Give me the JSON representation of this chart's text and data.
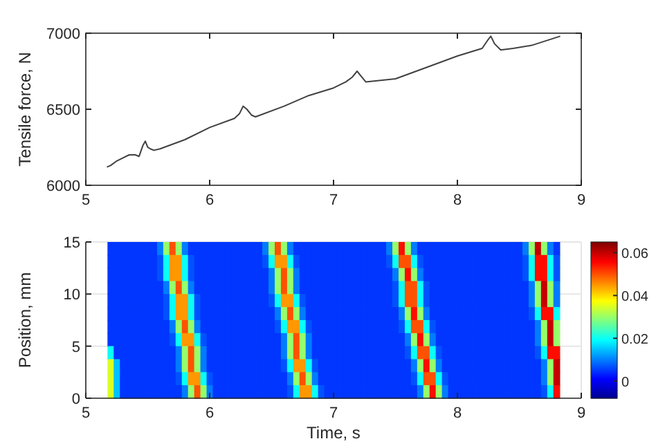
{
  "chart_data": [
    {
      "type": "line",
      "ylabel": "Tensile force, N",
      "xlim": [
        5,
        9
      ],
      "xticks": [
        5,
        6,
        7,
        8,
        9
      ],
      "ylim": [
        6000,
        7000
      ],
      "yticks": [
        6000,
        6500,
        7000
      ],
      "grid": false,
      "series": [
        {
          "color": "#404040",
          "x": [
            5.17,
            5.2,
            5.25,
            5.3,
            5.35,
            5.4,
            5.43,
            5.46,
            5.48,
            5.5,
            5.52,
            5.55,
            5.6,
            5.8,
            6.0,
            6.2,
            6.24,
            6.27,
            6.3,
            6.34,
            6.37,
            6.6,
            6.8,
            7.0,
            7.1,
            7.15,
            7.19,
            7.22,
            7.26,
            7.5,
            7.8,
            8.0,
            8.2,
            8.25,
            8.27,
            8.3,
            8.35,
            8.45,
            8.6,
            8.83
          ],
          "values": [
            6120,
            6130,
            6160,
            6180,
            6200,
            6200,
            6190,
            6260,
            6290,
            6250,
            6240,
            6230,
            6240,
            6300,
            6380,
            6440,
            6470,
            6520,
            6500,
            6460,
            6450,
            6520,
            6590,
            6640,
            6680,
            6710,
            6750,
            6720,
            6680,
            6700,
            6790,
            6850,
            6900,
            6960,
            6980,
            6930,
            6890,
            6900,
            6920,
            6980
          ]
        }
      ]
    },
    {
      "type": "heatmap",
      "xlabel": "Time, s",
      "ylabel": "Position, mm",
      "xlim": [
        5,
        9
      ],
      "xticks": [
        5,
        6,
        7,
        8,
        9
      ],
      "ylim": [
        0,
        15
      ],
      "yticks": [
        0,
        5,
        10,
        15
      ],
      "grid": true,
      "clim": [
        -0.008,
        0.065
      ],
      "cticks": [
        0,
        0.02,
        0.04,
        0.06
      ],
      "x": [
        5.2,
        5.25,
        5.3,
        5.35,
        5.4,
        5.45,
        5.5,
        5.55,
        5.6,
        5.65,
        5.7,
        5.75,
        5.8,
        5.85,
        5.9,
        5.95,
        6.0,
        6.05,
        6.1,
        6.15,
        6.2,
        6.25,
        6.3,
        6.35,
        6.4,
        6.45,
        6.5,
        6.55,
        6.6,
        6.65,
        6.7,
        6.75,
        6.8,
        6.85,
        6.9,
        6.95,
        7.0,
        7.05,
        7.1,
        7.15,
        7.2,
        7.25,
        7.3,
        7.35,
        7.4,
        7.45,
        7.5,
        7.55,
        7.6,
        7.65,
        7.7,
        7.75,
        7.8,
        7.85,
        7.9,
        7.95,
        8.0,
        8.05,
        8.1,
        8.15,
        8.2,
        8.25,
        8.3,
        8.35,
        8.4,
        8.45,
        8.5,
        8.55,
        8.6,
        8.65,
        8.7,
        8.75,
        8.8
      ],
      "cells": [
        [
          0.005,
          0.005,
          0.005,
          0.005,
          0.005,
          0.005,
          0.005,
          0.005,
          0.01,
          0.03,
          0.05,
          0.03,
          0.01,
          0.005,
          0.005,
          0.005,
          0.005,
          0.005,
          0.005,
          0.005,
          0.005,
          0.005,
          0.005,
          0.005,
          0.005,
          0.01,
          0.03,
          0.05,
          0.03,
          0.01,
          0.005,
          0.005,
          0.005,
          0.005,
          0.005,
          0.005,
          0.005,
          0.005,
          0.005,
          0.005,
          0.005,
          0.005,
          0.005,
          0.005,
          0.005,
          0.01,
          0.03,
          0.055,
          0.03,
          0.01,
          0.005,
          0.005,
          0.005,
          0.005,
          0.005,
          0.005,
          0.005,
          0.005,
          0.005,
          0.005,
          0.005,
          0.005,
          0.005,
          0.005,
          0.005,
          0.005,
          0.005,
          0.01,
          0.03,
          0.06,
          0.03,
          0.01,
          0.005
        ],
        [
          0.005,
          0.005,
          0.005,
          0.005,
          0.005,
          0.005,
          0.005,
          0.005,
          0.007,
          0.02,
          0.045,
          0.045,
          0.02,
          0.007,
          0.005,
          0.005,
          0.005,
          0.005,
          0.005,
          0.005,
          0.005,
          0.005,
          0.005,
          0.005,
          0.005,
          0.007,
          0.02,
          0.045,
          0.045,
          0.02,
          0.007,
          0.005,
          0.005,
          0.005,
          0.005,
          0.005,
          0.005,
          0.005,
          0.005,
          0.005,
          0.005,
          0.005,
          0.005,
          0.005,
          0.005,
          0.007,
          0.02,
          0.05,
          0.05,
          0.02,
          0.007,
          0.005,
          0.005,
          0.005,
          0.005,
          0.005,
          0.005,
          0.005,
          0.005,
          0.005,
          0.005,
          0.005,
          0.005,
          0.005,
          0.005,
          0.005,
          0.005,
          0.007,
          0.02,
          0.055,
          0.055,
          0.02,
          0.007
        ],
        [
          0.005,
          0.005,
          0.005,
          0.005,
          0.005,
          0.005,
          0.005,
          0.005,
          0.007,
          0.02,
          0.045,
          0.045,
          0.02,
          0.007,
          0.005,
          0.005,
          0.005,
          0.005,
          0.005,
          0.005,
          0.005,
          0.005,
          0.005,
          0.005,
          0.005,
          0.005,
          0.01,
          0.03,
          0.05,
          0.03,
          0.01,
          0.005,
          0.005,
          0.005,
          0.005,
          0.005,
          0.005,
          0.005,
          0.005,
          0.005,
          0.005,
          0.005,
          0.005,
          0.005,
          0.005,
          0.005,
          0.01,
          0.03,
          0.055,
          0.03,
          0.01,
          0.005,
          0.005,
          0.005,
          0.005,
          0.005,
          0.005,
          0.005,
          0.005,
          0.005,
          0.005,
          0.005,
          0.005,
          0.005,
          0.005,
          0.005,
          0.005,
          0.007,
          0.02,
          0.055,
          0.055,
          0.02,
          0.007
        ],
        [
          0.005,
          0.005,
          0.005,
          0.005,
          0.005,
          0.005,
          0.005,
          0.005,
          0.005,
          0.01,
          0.03,
          0.05,
          0.03,
          0.01,
          0.005,
          0.005,
          0.005,
          0.005,
          0.005,
          0.005,
          0.005,
          0.005,
          0.005,
          0.005,
          0.005,
          0.005,
          0.01,
          0.03,
          0.05,
          0.03,
          0.01,
          0.005,
          0.005,
          0.005,
          0.005,
          0.005,
          0.005,
          0.005,
          0.005,
          0.005,
          0.005,
          0.005,
          0.005,
          0.005,
          0.005,
          0.005,
          0.007,
          0.02,
          0.05,
          0.05,
          0.02,
          0.007,
          0.005,
          0.005,
          0.005,
          0.005,
          0.005,
          0.005,
          0.005,
          0.005,
          0.005,
          0.005,
          0.005,
          0.005,
          0.005,
          0.005,
          0.005,
          0.005,
          0.01,
          0.03,
          0.06,
          0.03,
          0.01
        ],
        [
          0.005,
          0.005,
          0.005,
          0.005,
          0.005,
          0.005,
          0.005,
          0.005,
          0.005,
          0.007,
          0.02,
          0.045,
          0.045,
          0.02,
          0.007,
          0.005,
          0.005,
          0.005,
          0.005,
          0.005,
          0.005,
          0.005,
          0.005,
          0.005,
          0.005,
          0.005,
          0.007,
          0.02,
          0.045,
          0.045,
          0.02,
          0.007,
          0.005,
          0.005,
          0.005,
          0.005,
          0.005,
          0.005,
          0.005,
          0.005,
          0.005,
          0.005,
          0.005,
          0.005,
          0.005,
          0.005,
          0.007,
          0.02,
          0.05,
          0.05,
          0.02,
          0.007,
          0.005,
          0.005,
          0.005,
          0.005,
          0.005,
          0.005,
          0.005,
          0.005,
          0.005,
          0.005,
          0.005,
          0.005,
          0.005,
          0.005,
          0.005,
          0.005,
          0.01,
          0.03,
          0.06,
          0.03,
          0.01
        ],
        [
          0.005,
          0.005,
          0.005,
          0.005,
          0.005,
          0.005,
          0.005,
          0.005,
          0.005,
          0.007,
          0.02,
          0.045,
          0.045,
          0.02,
          0.007,
          0.005,
          0.005,
          0.005,
          0.005,
          0.005,
          0.005,
          0.005,
          0.005,
          0.005,
          0.005,
          0.005,
          0.005,
          0.01,
          0.03,
          0.05,
          0.03,
          0.01,
          0.005,
          0.005,
          0.005,
          0.005,
          0.005,
          0.005,
          0.005,
          0.005,
          0.005,
          0.005,
          0.005,
          0.005,
          0.005,
          0.005,
          0.005,
          0.01,
          0.03,
          0.055,
          0.03,
          0.01,
          0.005,
          0.005,
          0.005,
          0.005,
          0.005,
          0.005,
          0.005,
          0.005,
          0.005,
          0.005,
          0.005,
          0.005,
          0.005,
          0.005,
          0.005,
          0.005,
          0.007,
          0.02,
          0.055,
          0.055,
          0.02
        ],
        [
          0.005,
          0.005,
          0.005,
          0.005,
          0.005,
          0.005,
          0.005,
          0.005,
          0.005,
          0.005,
          0.01,
          0.03,
          0.05,
          0.03,
          0.01,
          0.005,
          0.005,
          0.005,
          0.005,
          0.005,
          0.005,
          0.005,
          0.005,
          0.005,
          0.005,
          0.005,
          0.005,
          0.007,
          0.02,
          0.045,
          0.045,
          0.02,
          0.007,
          0.005,
          0.005,
          0.005,
          0.005,
          0.005,
          0.005,
          0.005,
          0.005,
          0.005,
          0.005,
          0.005,
          0.005,
          0.005,
          0.005,
          0.007,
          0.02,
          0.05,
          0.05,
          0.02,
          0.007,
          0.005,
          0.005,
          0.005,
          0.005,
          0.005,
          0.005,
          0.005,
          0.005,
          0.005,
          0.005,
          0.005,
          0.005,
          0.005,
          0.005,
          0.005,
          0.005,
          0.01,
          0.03,
          0.06,
          0.03
        ],
        [
          0.005,
          0.005,
          0.005,
          0.005,
          0.005,
          0.005,
          0.005,
          0.005,
          0.005,
          0.005,
          0.007,
          0.02,
          0.045,
          0.045,
          0.02,
          0.007,
          0.005,
          0.005,
          0.005,
          0.005,
          0.005,
          0.005,
          0.005,
          0.005,
          0.005,
          0.005,
          0.005,
          0.005,
          0.01,
          0.03,
          0.05,
          0.03,
          0.01,
          0.005,
          0.005,
          0.005,
          0.005,
          0.005,
          0.005,
          0.005,
          0.005,
          0.005,
          0.005,
          0.005,
          0.005,
          0.005,
          0.005,
          0.005,
          0.01,
          0.03,
          0.055,
          0.03,
          0.01,
          0.005,
          0.005,
          0.005,
          0.005,
          0.005,
          0.005,
          0.005,
          0.005,
          0.005,
          0.005,
          0.005,
          0.005,
          0.005,
          0.005,
          0.005,
          0.005,
          0.01,
          0.03,
          0.06,
          0.03
        ],
        [
          0.02,
          0.005,
          0.005,
          0.005,
          0.005,
          0.005,
          0.005,
          0.005,
          0.005,
          0.005,
          0.005,
          0.01,
          0.03,
          0.05,
          0.03,
          0.01,
          0.005,
          0.005,
          0.005,
          0.005,
          0.005,
          0.005,
          0.005,
          0.005,
          0.005,
          0.005,
          0.005,
          0.005,
          0.01,
          0.03,
          0.05,
          0.03,
          0.01,
          0.005,
          0.005,
          0.005,
          0.005,
          0.005,
          0.005,
          0.005,
          0.005,
          0.005,
          0.005,
          0.005,
          0.005,
          0.005,
          0.005,
          0.005,
          0.007,
          0.02,
          0.05,
          0.05,
          0.02,
          0.007,
          0.005,
          0.005,
          0.005,
          0.005,
          0.005,
          0.005,
          0.005,
          0.005,
          0.005,
          0.005,
          0.005,
          0.005,
          0.005,
          0.005,
          0.005,
          0.007,
          0.02,
          0.055,
          0.055
        ],
        [
          0.035,
          0.015,
          0.005,
          0.005,
          0.005,
          0.005,
          0.005,
          0.005,
          0.005,
          0.005,
          0.005,
          0.01,
          0.03,
          0.05,
          0.03,
          0.01,
          0.005,
          0.005,
          0.005,
          0.005,
          0.005,
          0.005,
          0.005,
          0.005,
          0.005,
          0.005,
          0.005,
          0.005,
          0.007,
          0.02,
          0.045,
          0.045,
          0.02,
          0.007,
          0.005,
          0.005,
          0.005,
          0.005,
          0.005,
          0.005,
          0.005,
          0.005,
          0.005,
          0.005,
          0.005,
          0.005,
          0.005,
          0.005,
          0.005,
          0.01,
          0.03,
          0.055,
          0.03,
          0.01,
          0.005,
          0.005,
          0.005,
          0.005,
          0.005,
          0.005,
          0.005,
          0.005,
          0.005,
          0.005,
          0.005,
          0.005,
          0.005,
          0.005,
          0.005,
          0.005,
          0.01,
          0.03,
          0.06
        ],
        [
          0.035,
          0.015,
          0.005,
          0.005,
          0.005,
          0.005,
          0.005,
          0.005,
          0.005,
          0.005,
          0.005,
          0.007,
          0.02,
          0.045,
          0.045,
          0.02,
          0.007,
          0.005,
          0.005,
          0.005,
          0.005,
          0.005,
          0.005,
          0.005,
          0.005,
          0.005,
          0.005,
          0.005,
          0.005,
          0.01,
          0.03,
          0.05,
          0.03,
          0.01,
          0.005,
          0.005,
          0.005,
          0.005,
          0.005,
          0.005,
          0.005,
          0.005,
          0.005,
          0.005,
          0.005,
          0.005,
          0.005,
          0.005,
          0.005,
          0.007,
          0.02,
          0.05,
          0.05,
          0.02,
          0.007,
          0.005,
          0.005,
          0.005,
          0.005,
          0.005,
          0.005,
          0.005,
          0.005,
          0.005,
          0.005,
          0.005,
          0.005,
          0.005,
          0.005,
          0.005,
          0.01,
          0.03,
          0.06
        ],
        [
          0.035,
          0.015,
          0.005,
          0.005,
          0.005,
          0.005,
          0.005,
          0.005,
          0.005,
          0.005,
          0.005,
          0.005,
          0.01,
          0.03,
          0.05,
          0.03,
          0.01,
          0.005,
          0.005,
          0.005,
          0.005,
          0.005,
          0.005,
          0.005,
          0.005,
          0.005,
          0.005,
          0.005,
          0.005,
          0.007,
          0.02,
          0.045,
          0.045,
          0.02,
          0.007,
          0.005,
          0.005,
          0.005,
          0.005,
          0.005,
          0.005,
          0.005,
          0.005,
          0.005,
          0.005,
          0.005,
          0.005,
          0.005,
          0.005,
          0.005,
          0.01,
          0.03,
          0.055,
          0.03,
          0.01,
          0.005,
          0.005,
          0.005,
          0.005,
          0.005,
          0.005,
          0.005,
          0.005,
          0.005,
          0.005,
          0.005,
          0.005,
          0.005,
          0.005,
          0.005,
          0.007,
          0.02,
          0.055
        ]
      ]
    }
  ]
}
